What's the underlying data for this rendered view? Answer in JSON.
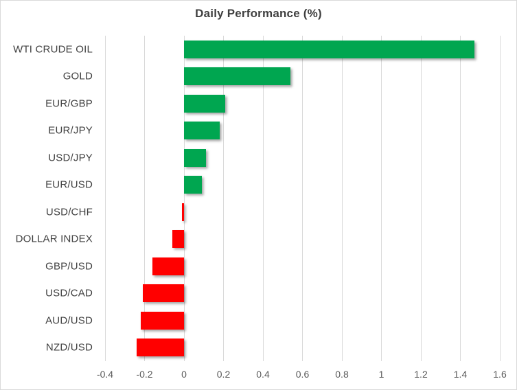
{
  "chart_data": {
    "type": "bar",
    "orientation": "horizontal",
    "title": "Daily Performance (%)",
    "categories": [
      "WTI CRUDE OIL",
      "GOLD",
      "EUR/GBP",
      "EUR/JPY",
      "USD/JPY",
      "EUR/USD",
      "USD/CHF",
      "DOLLAR INDEX",
      "GBP/USD",
      "USD/CAD",
      "AUD/USD",
      "NZD/USD"
    ],
    "values": [
      1.47,
      0.54,
      0.21,
      0.18,
      0.11,
      0.09,
      -0.01,
      -0.06,
      -0.16,
      -0.21,
      -0.22,
      -0.24
    ],
    "xlim": [
      -0.4,
      1.6
    ],
    "x_tick_values": [
      -0.4,
      -0.2,
      0,
      0.2,
      0.4,
      0.6,
      0.8,
      1,
      1.2,
      1.4,
      1.6
    ],
    "x_tick_labels": [
      "-0.4",
      "-0.2",
      "0",
      "0.2",
      "0.4",
      "0.6",
      "0.8",
      "1",
      "1.2",
      "1.4",
      "1.6"
    ],
    "grid": true,
    "legend": "none",
    "colors": {
      "positive_bar": "#00a650",
      "negative_bar": "#ff0000",
      "gridline": "#d9d9d9",
      "frame_border": "#d9d9d9",
      "title_text": "#3f3f3f",
      "category_text": "#404040",
      "tick_text": "#595959"
    }
  }
}
